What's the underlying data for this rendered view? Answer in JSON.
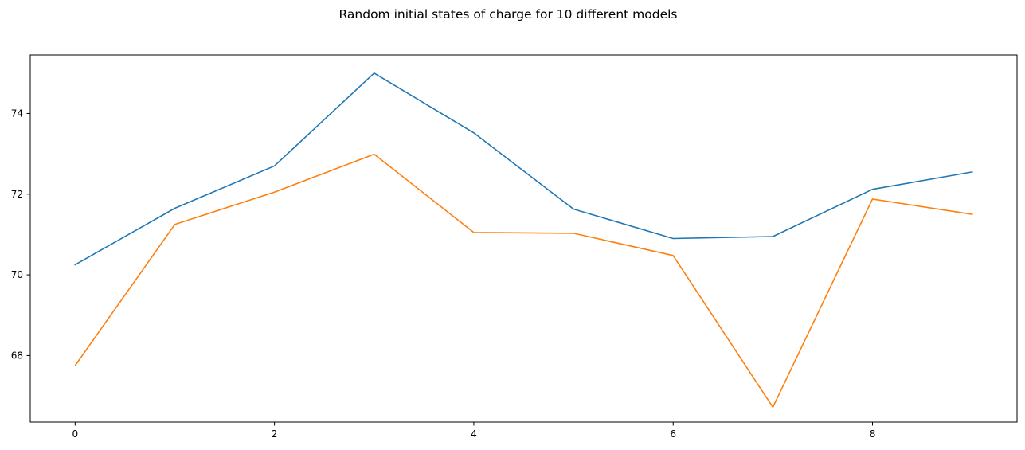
{
  "chart_data": {
    "type": "line",
    "title": "Random initial states of charge for 10 different models",
    "xlabel": "",
    "ylabel": "",
    "x": [
      0,
      1,
      2,
      3,
      4,
      5,
      6,
      7,
      8,
      9
    ],
    "xlim": [
      -0.45,
      9.45
    ],
    "ylim": [
      66.35,
      75.45
    ],
    "xticks": [
      0,
      2,
      4,
      6,
      8
    ],
    "yticks": [
      68,
      70,
      72,
      74
    ],
    "grid": false,
    "series": [
      {
        "color": "#1f77b4",
        "values": [
          70.25,
          71.65,
          72.7,
          75.0,
          73.52,
          71.63,
          70.9,
          70.95,
          72.12,
          72.55
        ]
      },
      {
        "color": "#ff7f0e",
        "values": [
          67.75,
          71.25,
          72.05,
          72.99,
          71.05,
          71.03,
          70.48,
          66.72,
          71.88,
          71.5
        ]
      }
    ]
  }
}
